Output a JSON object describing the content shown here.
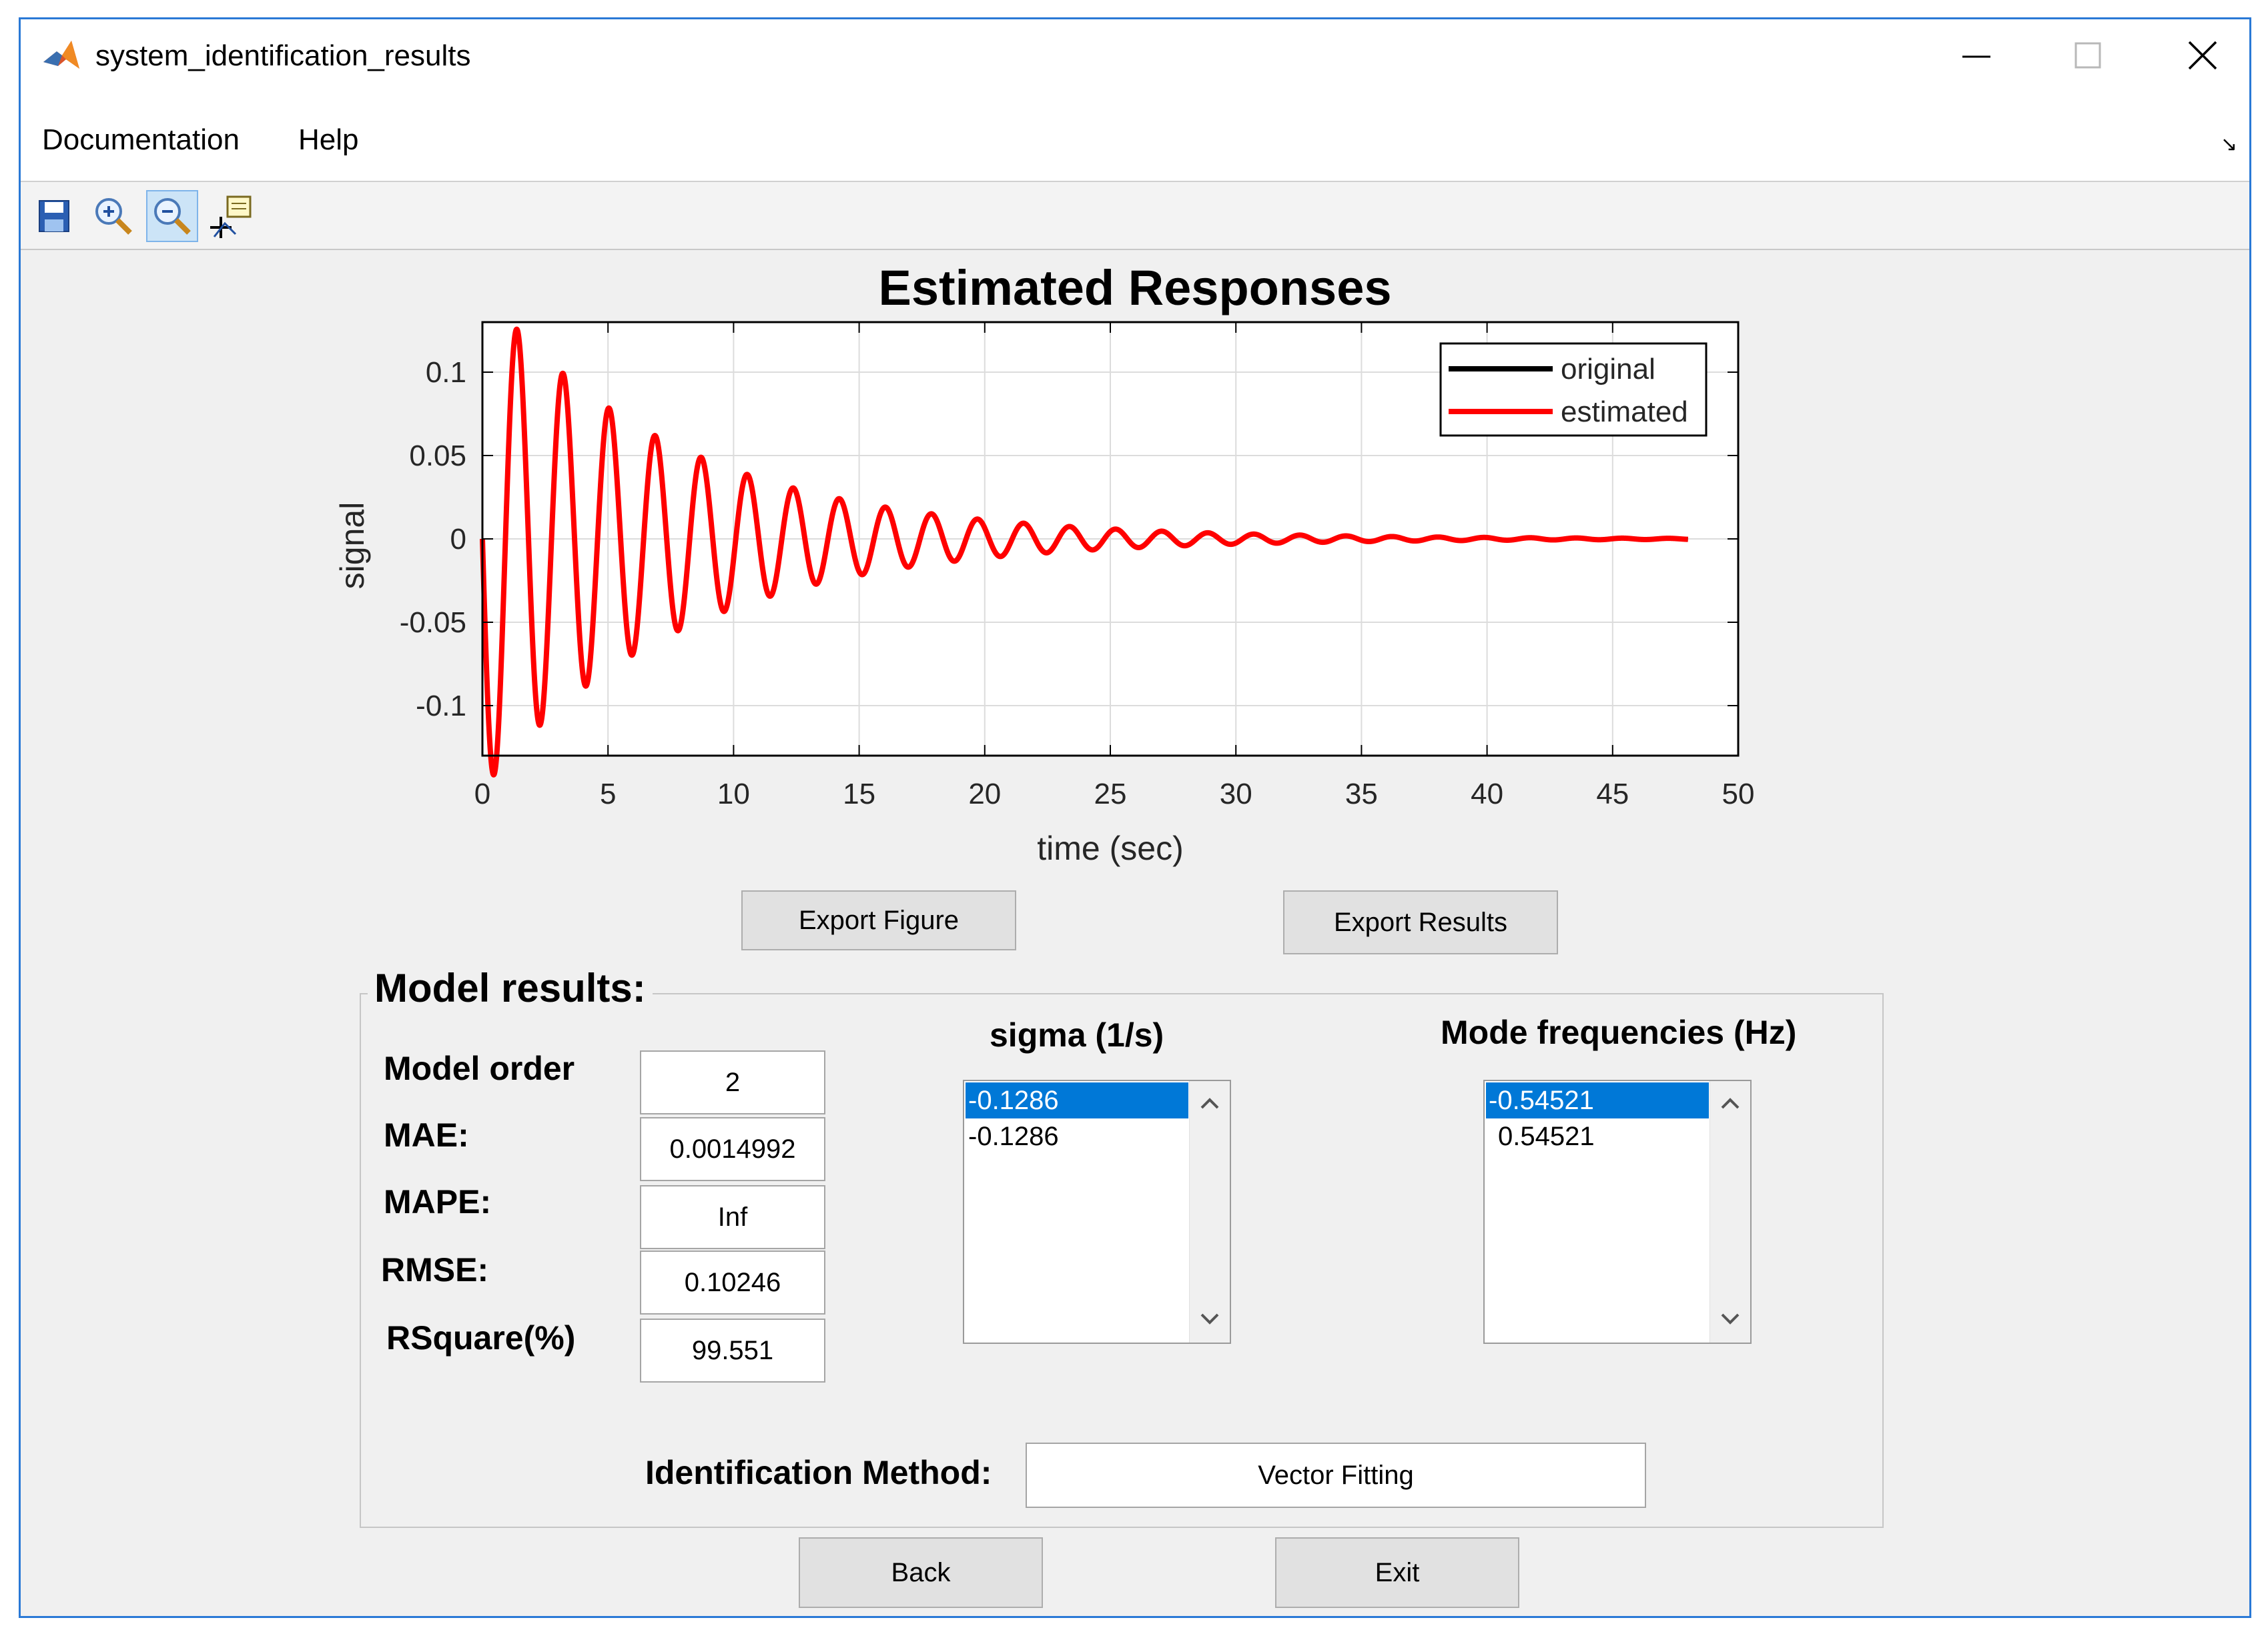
{
  "window": {
    "title": "system_identification_results"
  },
  "icons": {
    "app": "matlab-icon",
    "minimize": "minimize-icon",
    "maximize": "maximize-icon",
    "close": "close-icon",
    "save": "save-icon",
    "zoom_in": "zoom-in-icon",
    "zoom_out": "zoom-out-icon",
    "data_cursor": "data-cursor-icon",
    "dock": "dock-arrow-icon"
  },
  "menu": {
    "items": [
      "Documentation",
      "Help"
    ],
    "dock_glyph": "↘"
  },
  "colors": {
    "original": "#000000",
    "estimated": "#ff0000",
    "selection": "#0078d7"
  },
  "chart_data": {
    "type": "line",
    "title": "Estimated Responses",
    "xlabel": "time (sec)",
    "ylabel": "signal",
    "xlim": [
      0,
      50
    ],
    "ylim": [
      -0.13,
      0.13
    ],
    "xticks": [
      0,
      5,
      10,
      15,
      20,
      25,
      30,
      35,
      40,
      45,
      50
    ],
    "yticks": [
      0.1,
      0.05,
      0,
      -0.05,
      -0.1
    ],
    "ytick_labels": [
      "0.1",
      "0.05",
      "0",
      "-0.05",
      "-0.1"
    ],
    "grid": true,
    "legend_position": "top-right",
    "series": [
      {
        "name": "original",
        "color": "#000000",
        "model": {
          "amplitude": -0.15,
          "sigma": -0.1286,
          "frequency_hz": 0.54521,
          "x_end": 48
        }
      },
      {
        "name": "estimated",
        "color": "#ff0000",
        "model": {
          "amplitude": -0.15,
          "sigma": -0.1286,
          "frequency_hz": 0.54521,
          "x_end": 48
        }
      }
    ]
  },
  "buttons": {
    "export_figure": "Export Figure",
    "export_results": "Export Results",
    "back": "Back",
    "exit": "Exit"
  },
  "model_results": {
    "title": "Model results:",
    "rows": [
      {
        "label": "Model order",
        "value": "2"
      },
      {
        "label": "MAE:",
        "value": "0.0014992"
      },
      {
        "label": "MAPE:",
        "value": "Inf"
      },
      {
        "label": "RMSE:",
        "value": "0.10246"
      },
      {
        "label": "RSquare(%)",
        "value": "99.551"
      }
    ],
    "sigma": {
      "title": "sigma (1/s)",
      "items": [
        "-0.1286",
        "-0.1286"
      ],
      "selected": 0
    },
    "frequencies": {
      "title": "Mode frequencies (Hz)",
      "items": [
        "-0.54521",
        "0.54521"
      ],
      "selected": 0
    },
    "method_label": "Identification Method:",
    "method_value": "Vector Fitting"
  }
}
